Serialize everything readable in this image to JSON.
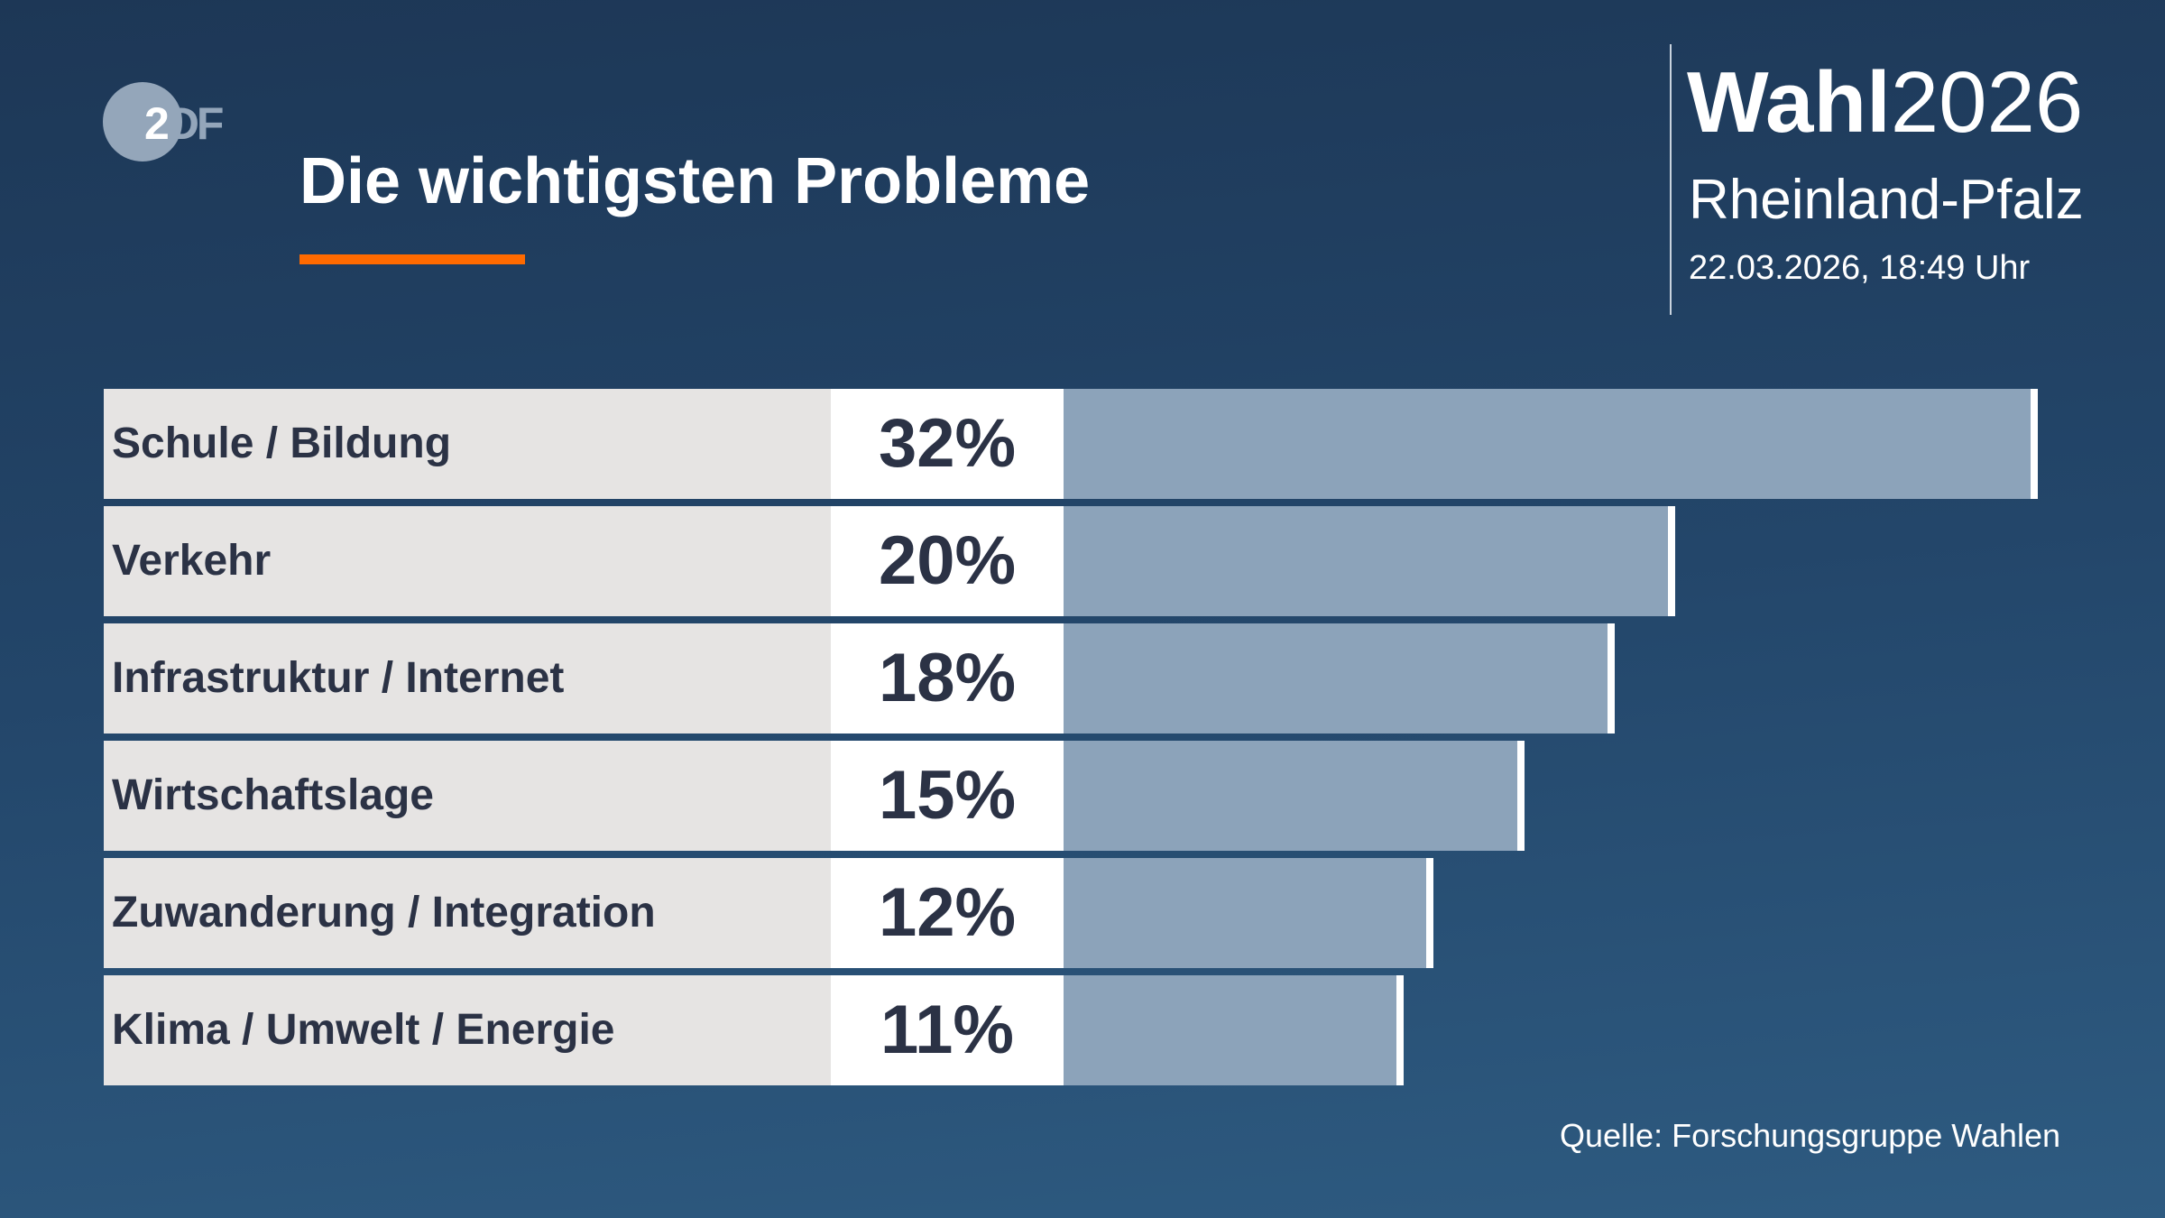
{
  "logo": {
    "text": "ZDF",
    "brand_color": "#94a6ba"
  },
  "header": {
    "title": "Die wichtigsten Probleme",
    "accent_color": "#ff6a00"
  },
  "badge": {
    "wahl_bold": "Wahl",
    "wahl_year": "2026",
    "region": "Rheinland-Pfalz",
    "datetime": "22.03.2026, 18:49 Uhr"
  },
  "chart_data": {
    "type": "bar",
    "orientation": "horizontal",
    "title": "Die wichtigsten Probleme",
    "categories": [
      "Schule / Bildung",
      "Verkehr",
      "Infrastruktur / Internet",
      "Wirtschaftslage",
      "Zuwanderung / Integration",
      "Klima / Umwelt / Energie"
    ],
    "values": [
      32,
      20,
      18,
      15,
      12,
      11
    ],
    "labels": [
      "32%",
      "20%",
      "18%",
      "15%",
      "12%",
      "11%"
    ],
    "unit": "%",
    "bar_color": "#8ca3ba",
    "grid": false
  },
  "source": "Quelle: Forschungsgruppe Wahlen"
}
